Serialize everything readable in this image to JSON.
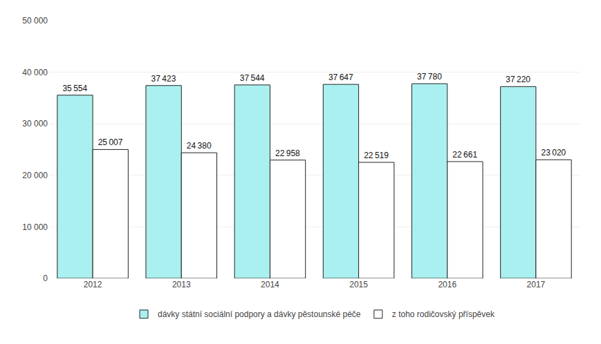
{
  "chart_data": {
    "type": "bar",
    "categories": [
      "2012",
      "2013",
      "2014",
      "2015",
      "2016",
      "2017"
    ],
    "series": [
      {
        "name": "dávky státní sociální podpory a dávky pěstounské péče",
        "color": "#aaf0f0",
        "values": [
          35554,
          37423,
          37544,
          37647,
          37780,
          37220
        ],
        "value_labels": [
          "35 554",
          "37 423",
          "37 544",
          "37 647",
          "37 780",
          "37 220"
        ]
      },
      {
        "name": "z toho rodičovský příspěvek",
        "color": "#ffffff",
        "values": [
          25007,
          24380,
          22958,
          22519,
          22661,
          23020
        ],
        "value_labels": [
          "25 007",
          "24 380",
          "22 958",
          "22 519",
          "22 661",
          "23 020"
        ]
      }
    ],
    "ylim": [
      0,
      50000
    ],
    "yticks": [
      0,
      {
        "value": 10000,
        "label": "10 000"
      },
      {
        "value": 20000,
        "label": "20 000"
      },
      {
        "value": 30000,
        "label": "30 000"
      },
      {
        "value": 40000,
        "label": "40 000"
      },
      {
        "value": 50000,
        "label": "50 000"
      }
    ],
    "grid": true,
    "legend": "bottom",
    "data_labels": true
  }
}
